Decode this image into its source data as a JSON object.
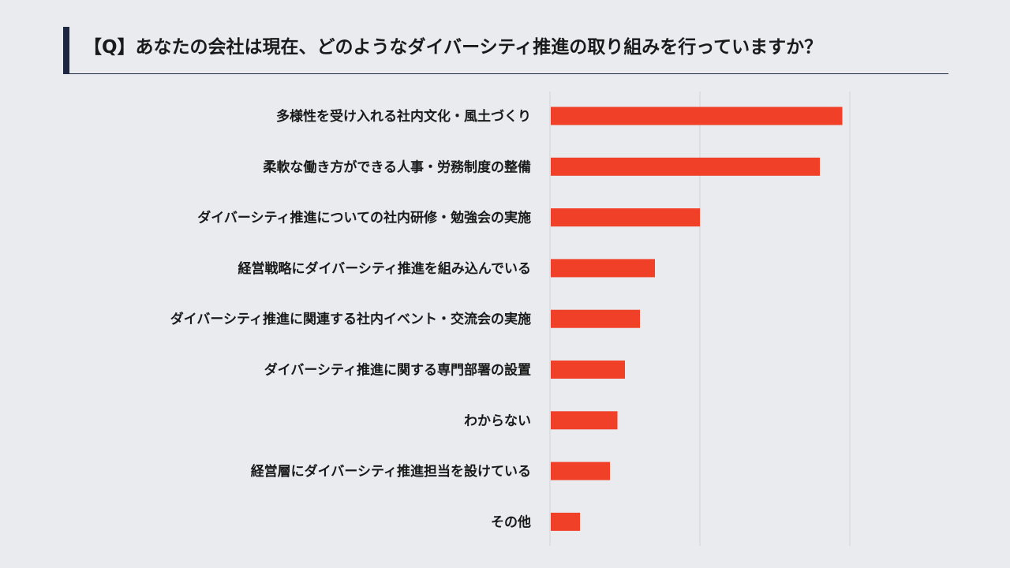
{
  "title": "【Q】あなたの会社は現在、どのようなダイバーシティ推進の取り組みを行っていますか？",
  "chart_data": {
    "type": "bar",
    "orientation": "horizontal",
    "title": "【Q】あなたの会社は現在、どのようなダイバーシティ推進の取り組みを行っていますか？",
    "categories": [
      "多様性を受け入れる社内文化・風土づくり",
      "柔軟な働き方ができる人事・労務制度の整備",
      "ダイバーシティ推進についての社内研修・勉強会の実施",
      "経営戦略にダイバーシティ推進を組み込んでいる",
      "ダイバーシティ推進に関連する社内イベント・交流会の実施",
      "ダイバーシティ推進に関する専門部署の設置",
      "わからない",
      "経営層にダイバーシティ推進担当を設けている",
      "その他"
    ],
    "values": [
      39,
      36,
      20,
      14,
      12,
      10,
      9,
      8,
      4
    ],
    "xlim": [
      0,
      40
    ],
    "gridlines": [
      20,
      40
    ],
    "bar_color": "#f04028",
    "grid": true
  }
}
